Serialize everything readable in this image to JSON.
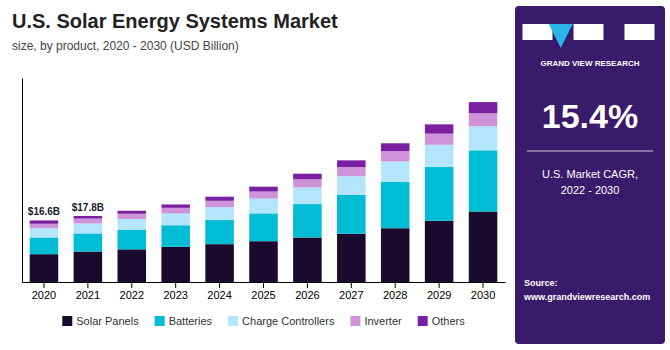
{
  "chart_data": {
    "type": "bar",
    "title": "U.S. Solar Energy Systems Market",
    "subtitle": "size, by product, 2020 - 2030 (USD Billion)",
    "categories": [
      "2020",
      "2021",
      "2022",
      "2023",
      "2024",
      "2025",
      "2026",
      "2027",
      "2028",
      "2029",
      "2030"
    ],
    "series": [
      {
        "name": "Solar Panels",
        "color": "#1a0a2e",
        "values": [
          7.5,
          8.2,
          8.8,
          9.5,
          10.2,
          11.0,
          12.0,
          13.0,
          14.5,
          16.5,
          19.0
        ]
      },
      {
        "name": "Batteries",
        "color": "#00bcd4",
        "values": [
          4.5,
          4.9,
          5.3,
          5.8,
          6.5,
          7.5,
          9.0,
          10.5,
          12.5,
          14.5,
          16.5
        ]
      },
      {
        "name": "Charge Controllers",
        "color": "#b3e5fc",
        "values": [
          2.5,
          2.7,
          2.9,
          3.2,
          3.5,
          4.0,
          4.5,
          5.0,
          5.5,
          6.0,
          6.5
        ]
      },
      {
        "name": "Inverter",
        "color": "#ce93d8",
        "values": [
          1.2,
          1.3,
          1.4,
          1.5,
          1.7,
          1.9,
          2.2,
          2.5,
          2.8,
          3.0,
          3.5
        ]
      },
      {
        "name": "Others",
        "color": "#7b1fa2",
        "values": [
          0.9,
          0.7,
          0.8,
          0.9,
          1.1,
          1.3,
          1.5,
          1.8,
          2.1,
          2.5,
          3.0
        ]
      }
    ],
    "annotations": [
      {
        "x": "2020",
        "y": 16.6,
        "text": "$16.6B"
      },
      {
        "x": "2021",
        "y": 17.8,
        "text": "$17.8B"
      }
    ],
    "panel_texts": [
      [
        "GRAND VIEW RESEARCH"
      ],
      [
        "15.4%"
      ],
      [
        "U.S. Market CAGR,",
        "2022 - 2030"
      ],
      [
        "Source:",
        "www.grandviewresearch.com"
      ]
    ],
    "ylim": [
      0,
      55
    ],
    "stacked": true,
    "grid": false,
    "legend": "bottom",
    "tick_labels": "x"
  }
}
